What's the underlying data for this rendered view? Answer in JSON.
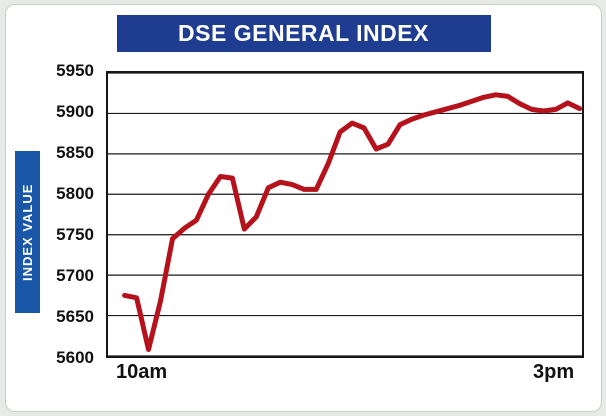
{
  "header": {
    "title": "DSE GENERAL INDEX",
    "bg": "#1e3d91",
    "text_color": "#ffffff"
  },
  "ylabel_bar": {
    "bg": "#1b57a8"
  },
  "chart_data": {
    "type": "line",
    "title": "DSE GENERAL INDEX",
    "ylabel": "INDEX VALUE",
    "xlabel": "",
    "x_tick_labels": [
      "10am",
      "3pm"
    ],
    "x_range_description": "time of trading day from 10am to 3pm, points evenly spaced",
    "y_ticks": [
      5600,
      5650,
      5700,
      5750,
      5800,
      5850,
      5900,
      5950
    ],
    "ylim": [
      5600,
      5950
    ],
    "grid": true,
    "grid_color": "#1a1a1a",
    "line_color": "#b5121b",
    "line_width": 5,
    "legend": "none",
    "values": [
      5675,
      5672,
      5608,
      5668,
      5745,
      5758,
      5768,
      5800,
      5822,
      5820,
      5757,
      5772,
      5808,
      5815,
      5812,
      5806,
      5806,
      5838,
      5877,
      5888,
      5882,
      5856,
      5862,
      5886,
      5893,
      5898,
      5902,
      5906,
      5910,
      5915,
      5920,
      5923,
      5921,
      5912,
      5905,
      5903,
      5905,
      5913,
      5906
    ]
  }
}
